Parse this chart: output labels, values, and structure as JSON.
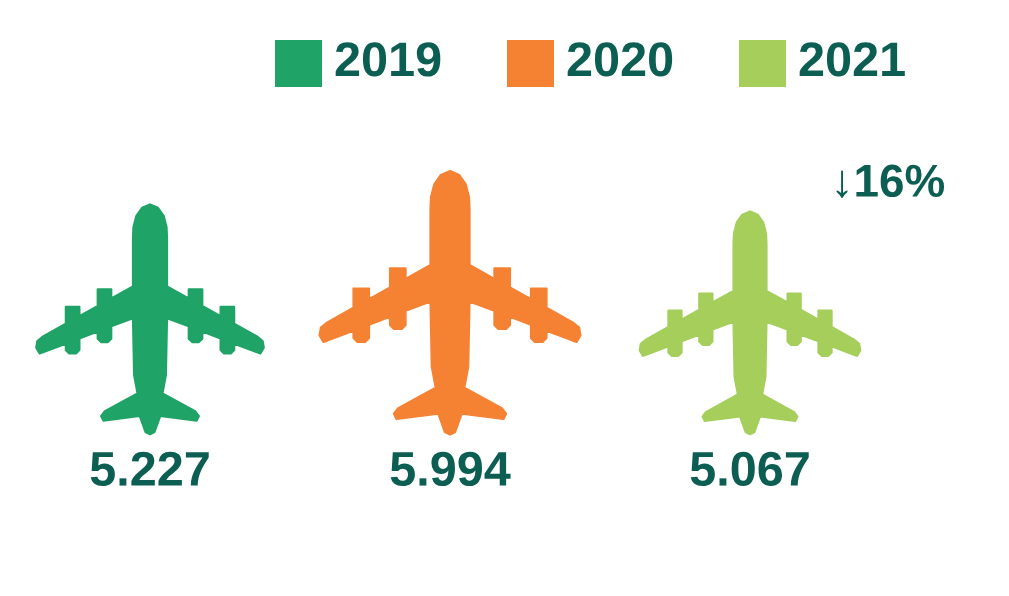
{
  "chart_data": {
    "type": "other",
    "categories": [
      "2019",
      "2020",
      "2021"
    ],
    "values": [
      5.227,
      5.994,
      5.067
    ],
    "colors": [
      "#1fa366",
      "#f58233",
      "#a5ce5b"
    ],
    "data_labels": true,
    "annotations": [
      "↓16%"
    ]
  }
}
